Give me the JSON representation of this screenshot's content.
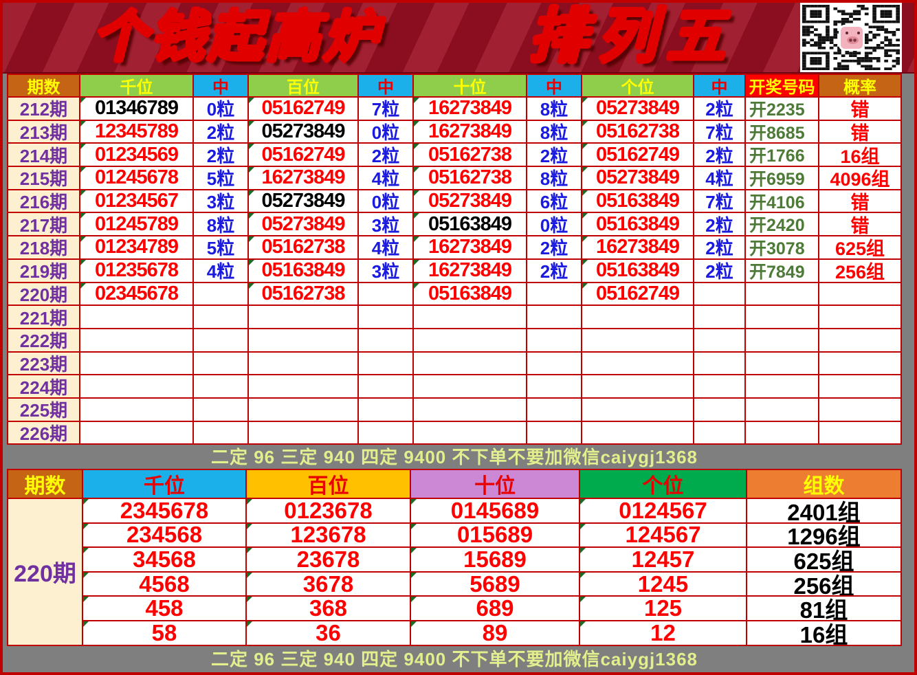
{
  "banner": {
    "title_left": "个钱起高炉",
    "title_right": "排列五",
    "qr_icon": "qr-code-with-pig-avatar"
  },
  "colors": {
    "page_border_red": "#c00000",
    "banner_bg": "#9a1022",
    "grid_border": "#c00000",
    "number_red": "#fe0000",
    "number_black": "#000000",
    "hit_blue": "#1b1be0",
    "draw_green": "#4e7a38",
    "period_purple": "#7030a0",
    "period_bg_cream": "#fdf0d0",
    "note_text": "#e3ee8d",
    "surround_gray": "#7f7f7f"
  },
  "table1": {
    "headers": [
      {
        "label": "期数",
        "bg": "#c46414",
        "fg": "#ffff00"
      },
      {
        "label": "千位",
        "bg": "#8fce4a",
        "fg": "#ffff00"
      },
      {
        "label": "中",
        "bg": "#1cb0ea",
        "fg": "#e80000"
      },
      {
        "label": "百位",
        "bg": "#8fce4a",
        "fg": "#ffff00"
      },
      {
        "label": "中",
        "bg": "#1cb0ea",
        "fg": "#e80000"
      },
      {
        "label": "十位",
        "bg": "#8fce4a",
        "fg": "#ffff00"
      },
      {
        "label": "中",
        "bg": "#1cb0ea",
        "fg": "#e80000"
      },
      {
        "label": "个位",
        "bg": "#8fce4a",
        "fg": "#ffff00"
      },
      {
        "label": "中",
        "bg": "#1cb0ea",
        "fg": "#e80000"
      },
      {
        "label": "开奖号码",
        "bg": "#ff0000",
        "fg": "#ffff00"
      },
      {
        "label": "概率",
        "bg": "#c46414",
        "fg": "#ffff00"
      }
    ],
    "rows": [
      {
        "period": "212期",
        "cells": [
          {
            "v": "01346789",
            "black": true
          },
          {
            "v": "0粒"
          },
          {
            "v": "05162749"
          },
          {
            "v": "7粒"
          },
          {
            "v": "16273849"
          },
          {
            "v": "8粒"
          },
          {
            "v": "05273849"
          },
          {
            "v": "2粒"
          },
          {
            "v": "开2235"
          },
          {
            "v": "错"
          }
        ]
      },
      {
        "period": "213期",
        "cells": [
          {
            "v": "12345789"
          },
          {
            "v": "2粒"
          },
          {
            "v": "05273849",
            "black": true
          },
          {
            "v": "0粒"
          },
          {
            "v": "16273849"
          },
          {
            "v": "8粒"
          },
          {
            "v": "05162738"
          },
          {
            "v": "7粒"
          },
          {
            "v": "开8685"
          },
          {
            "v": "错"
          }
        ]
      },
      {
        "period": "214期",
        "cells": [
          {
            "v": "01234569"
          },
          {
            "v": "2粒"
          },
          {
            "v": "05162749"
          },
          {
            "v": "2粒"
          },
          {
            "v": "05162738"
          },
          {
            "v": "2粒"
          },
          {
            "v": "05162749"
          },
          {
            "v": "2粒"
          },
          {
            "v": "开1766"
          },
          {
            "v": "16组"
          }
        ]
      },
      {
        "period": "215期",
        "cells": [
          {
            "v": "01245678"
          },
          {
            "v": "5粒"
          },
          {
            "v": "16273849"
          },
          {
            "v": "4粒"
          },
          {
            "v": "05162738"
          },
          {
            "v": "8粒"
          },
          {
            "v": "05273849"
          },
          {
            "v": "4粒"
          },
          {
            "v": "开6959"
          },
          {
            "v": "4096组"
          }
        ]
      },
      {
        "period": "216期",
        "cells": [
          {
            "v": "01234567"
          },
          {
            "v": "3粒"
          },
          {
            "v": "05273849",
            "black": true
          },
          {
            "v": "0粒"
          },
          {
            "v": "05273849"
          },
          {
            "v": "6粒"
          },
          {
            "v": "05163849"
          },
          {
            "v": "7粒"
          },
          {
            "v": "开4106"
          },
          {
            "v": "错"
          }
        ]
      },
      {
        "period": "217期",
        "cells": [
          {
            "v": "01245789"
          },
          {
            "v": "8粒"
          },
          {
            "v": "05273849"
          },
          {
            "v": "3粒"
          },
          {
            "v": "05163849",
            "black": true
          },
          {
            "v": "0粒"
          },
          {
            "v": "05163849"
          },
          {
            "v": "2粒"
          },
          {
            "v": "开2420"
          },
          {
            "v": "错"
          }
        ]
      },
      {
        "period": "218期",
        "cells": [
          {
            "v": "01234789"
          },
          {
            "v": "5粒"
          },
          {
            "v": "05162738"
          },
          {
            "v": "4粒"
          },
          {
            "v": "16273849"
          },
          {
            "v": "2粒"
          },
          {
            "v": "16273849"
          },
          {
            "v": "2粒"
          },
          {
            "v": "开3078"
          },
          {
            "v": "625组"
          }
        ]
      },
      {
        "period": "219期",
        "cells": [
          {
            "v": "01235678"
          },
          {
            "v": "4粒"
          },
          {
            "v": "05163849"
          },
          {
            "v": "3粒"
          },
          {
            "v": "16273849"
          },
          {
            "v": "2粒"
          },
          {
            "v": "05163849"
          },
          {
            "v": "2粒"
          },
          {
            "v": "开7849"
          },
          {
            "v": "256组"
          }
        ]
      },
      {
        "period": "220期",
        "cells": [
          {
            "v": "02345678"
          },
          {
            "v": ""
          },
          {
            "v": "05162738"
          },
          {
            "v": ""
          },
          {
            "v": "05163849"
          },
          {
            "v": ""
          },
          {
            "v": "05162749"
          },
          {
            "v": ""
          },
          {
            "v": ""
          },
          {
            "v": ""
          }
        ]
      },
      {
        "period": "221期",
        "cells": []
      },
      {
        "period": "222期",
        "cells": []
      },
      {
        "period": "223期",
        "cells": []
      },
      {
        "period": "224期",
        "cells": []
      },
      {
        "period": "225期",
        "cells": []
      },
      {
        "period": "226期",
        "cells": []
      }
    ]
  },
  "notes": {
    "middle": "二定 96 三定 940 四定 9400 不下单不要加微信caiygj1368",
    "bottom": "二定 96 三定 940 四定 9400 不下单不要加微信caiygj1368"
  },
  "table2": {
    "headers": [
      {
        "label": "期数",
        "bg": "#c46414",
        "fg": "#ffff00"
      },
      {
        "label": "千位",
        "bg": "#1cb0ea",
        "fg": "#e80000"
      },
      {
        "label": "百位",
        "bg": "#ffc000",
        "fg": "#e80000"
      },
      {
        "label": "十位",
        "bg": "#cc88d4",
        "fg": "#e80000"
      },
      {
        "label": "个位",
        "bg": "#00ab4e",
        "fg": "#e80000"
      },
      {
        "label": "组数",
        "bg": "#ed7d31",
        "fg": "#ffff00"
      }
    ],
    "period": "220期",
    "rows": [
      [
        "2345678",
        "0123678",
        "0145689",
        "0124567",
        "2401组"
      ],
      [
        "234568",
        "123678",
        "015689",
        "124567",
        "1296组"
      ],
      [
        "34568",
        "23678",
        "15689",
        "12457",
        "625组"
      ],
      [
        "4568",
        "3678",
        "5689",
        "1245",
        "256组"
      ],
      [
        "458",
        "368",
        "689",
        "125",
        "81组"
      ],
      [
        "58",
        "36",
        "89",
        "12",
        "16组"
      ]
    ]
  }
}
